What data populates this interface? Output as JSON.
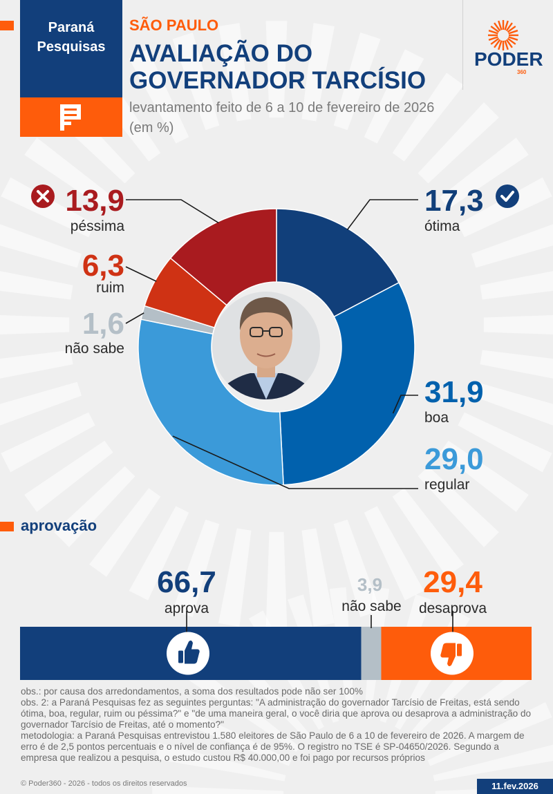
{
  "header": {
    "brand": [
      "Paraná",
      "Pesquisas"
    ],
    "eyebrow": "SÃO PAULO",
    "title_lines": [
      "AVALIAÇÃO DO",
      "GOVERNADOR TARCÍSIO"
    ],
    "subtitle": "levantamento feito de 6 a 10 de fevereiro de 2026 (em %)",
    "logo": "PODER",
    "logo_sub": "360"
  },
  "colors": {
    "navy": "#123f7b",
    "orange": "#fe5c0b",
    "otima": "#113f7a",
    "boa": "#0161ad",
    "regular": "#3b9ad9",
    "nao_sabe": "#b4bfc7",
    "ruim": "#cf3214",
    "pessima": "#a91b1f"
  },
  "chart_data": [
    {
      "type": "pie",
      "unit": "%",
      "series": [
        {
          "name": "ótima",
          "value": 17.3,
          "label": "17,3",
          "color": "#113f7a",
          "icon": "check-circle-icon"
        },
        {
          "name": "boa",
          "value": 31.9,
          "label": "31,9",
          "color": "#0161ad"
        },
        {
          "name": "regular",
          "value": 29.0,
          "label": "29,0",
          "color": "#3b9ad9"
        },
        {
          "name": "não sabe",
          "value": 1.6,
          "label": "1,6",
          "color": "#b4bfc7"
        },
        {
          "name": "ruim",
          "value": 6.3,
          "label": "6,3",
          "color": "#cf3214"
        },
        {
          "name": "péssima",
          "value": 13.9,
          "label": "13,9",
          "color": "#a91b1f",
          "icon": "x-circle-icon"
        }
      ],
      "center_image": "governor-portrait"
    },
    {
      "type": "bar",
      "title": "aprovação",
      "orientation": "horizontal-stacked",
      "unit": "%",
      "series": [
        {
          "name": "aprova",
          "value": 66.7,
          "label": "66,7",
          "color": "#123f7b",
          "icon": "thumbs-up-icon"
        },
        {
          "name": "não sabe",
          "value": 3.9,
          "label": "3,9",
          "color": "#b4bfc7"
        },
        {
          "name": "desaprova",
          "value": 29.4,
          "label": "29,4",
          "color": "#fe5c0b",
          "icon": "thumbs-down-icon"
        }
      ]
    }
  ],
  "notes": [
    "obs.: por causa dos arredondamentos, a soma dos resultados pode não ser 100%",
    "obs. 2: a Paraná Pesquisas fez as seguintes perguntas: \"A administração do governador Tarcísio de Freitas, está sendo ótima, boa, regular, ruim ou péssima?\" e \"de uma maneira geral, o você diria que aprova ou desaprova a administração do governador Tarcísio de Freitas, até o momento?\"",
    "metodologia: a Paraná Pesquisas entrevistou 1.580 eleitores de São Paulo de 6 a 10 de fevereiro de 2026. A margem de erro é de 2,5 pontos percentuais e o nível de confiança é de 95%. O registro no TSE é SP-04650/2026. Segundo a empresa que realizou a pesquisa, o estudo custou R$ 40.000,00 e foi pago por recursos próprios"
  ],
  "footer": {
    "copyright": "© Poder360 - 2026 - todos os direitos reservados",
    "date": "11.fev.2026"
  }
}
